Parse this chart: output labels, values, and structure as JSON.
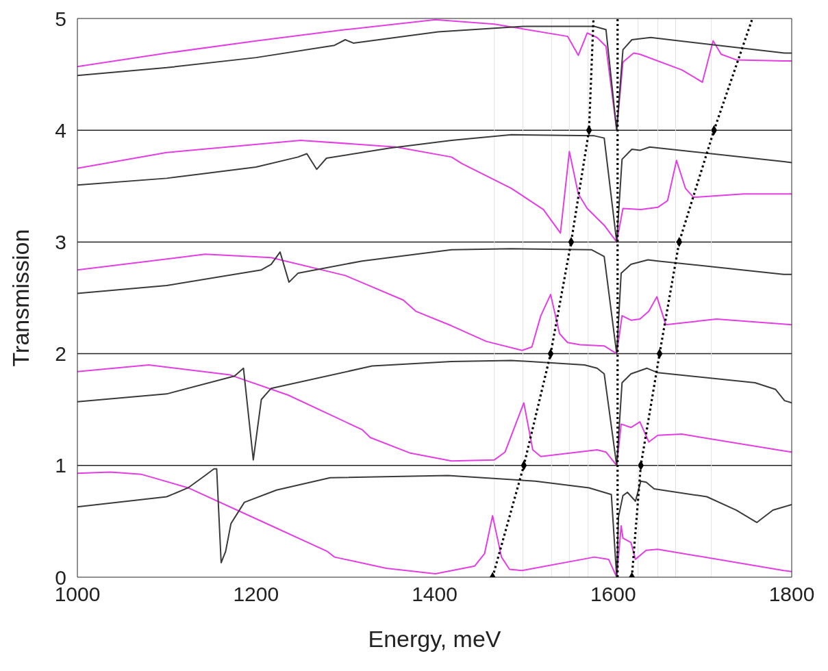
{
  "chart_data": {
    "type": "line",
    "xlabel": "Energy, meV",
    "ylabel": "Transmission",
    "xlim": [
      1000,
      1800
    ],
    "xticks": [
      1000,
      1200,
      1400,
      1600,
      1800
    ],
    "ylim": [
      0,
      5
    ],
    "yticks": [
      0,
      1,
      2,
      3,
      4,
      5
    ],
    "series": [
      {
        "color": "#e33de3",
        "marker": "none",
        "line_style": "solid",
        "x": [
          1000,
          1100,
          1200,
          1300,
          1401,
          1467,
          1549,
          1561,
          1571,
          1582,
          1592,
          1604,
          1611,
          1623,
          1630,
          1677,
          1700,
          1712,
          1721,
          1738,
          1791,
          1800
        ],
        "values": [
          4.57,
          4.69,
          4.8,
          4.9,
          4.99,
          4.95,
          4.84,
          4.67,
          4.87,
          4.83,
          4.75,
          4.0,
          4.61,
          4.69,
          4.68,
          4.54,
          4.43,
          4.8,
          4.68,
          4.63,
          4.62,
          4.62
        ]
      },
      {
        "color": "#3a3a3a",
        "marker": "none",
        "line_style": "solid",
        "x": [
          1000,
          1100,
          1200,
          1288,
          1300,
          1309,
          1404,
          1500,
          1579,
          1592,
          1604,
          1611,
          1621,
          1642,
          1792,
          1800
        ],
        "values": [
          4.49,
          4.56,
          4.65,
          4.76,
          4.81,
          4.78,
          4.88,
          4.93,
          4.93,
          4.9,
          4.0,
          4.72,
          4.81,
          4.83,
          4.69,
          4.69
        ]
      },
      {
        "color": "#e33de3",
        "marker": "none",
        "line_style": "solid",
        "x": [
          1000,
          1100,
          1250,
          1357,
          1419,
          1431,
          1486,
          1522,
          1541,
          1551,
          1561,
          1571,
          1590,
          1604,
          1611,
          1631,
          1650,
          1661,
          1671,
          1681,
          1690,
          1746,
          1800
        ],
        "values": [
          3.66,
          3.8,
          3.91,
          3.85,
          3.76,
          3.7,
          3.48,
          3.29,
          3.08,
          3.81,
          3.43,
          3.3,
          3.15,
          3.0,
          3.3,
          3.29,
          3.31,
          3.37,
          3.73,
          3.48,
          3.4,
          3.43,
          3.43
        ]
      },
      {
        "color": "#3a3a3a",
        "marker": "none",
        "line_style": "solid",
        "x": [
          1000,
          1100,
          1200,
          1247,
          1257,
          1268,
          1279,
          1350,
          1419,
          1486,
          1579,
          1590,
          1604,
          1610,
          1621,
          1630,
          1641,
          1791,
          1800
        ],
        "values": [
          3.51,
          3.57,
          3.67,
          3.76,
          3.79,
          3.65,
          3.75,
          3.84,
          3.91,
          3.96,
          3.95,
          3.93,
          3.0,
          3.74,
          3.83,
          3.82,
          3.85,
          3.72,
          3.71
        ]
      },
      {
        "color": "#e33de3",
        "marker": "none",
        "line_style": "solid",
        "x": [
          1000,
          1143,
          1217,
          1300,
          1365,
          1379,
          1419,
          1458,
          1498,
          1509,
          1519,
          1530,
          1540,
          1549,
          1563,
          1590,
          1604,
          1610,
          1620,
          1630,
          1640,
          1649,
          1659,
          1716,
          1800
        ],
        "values": [
          2.75,
          2.89,
          2.86,
          2.7,
          2.48,
          2.38,
          2.25,
          2.11,
          2.03,
          2.06,
          2.34,
          2.53,
          2.18,
          2.1,
          2.08,
          2.07,
          2.0,
          2.34,
          2.3,
          2.31,
          2.38,
          2.51,
          2.26,
          2.31,
          2.26
        ]
      },
      {
        "color": "#3a3a3a",
        "marker": "none",
        "line_style": "solid",
        "x": [
          1000,
          1100,
          1206,
          1217,
          1227,
          1237,
          1247,
          1319,
          1419,
          1486,
          1576,
          1590,
          1604,
          1609,
          1620,
          1639,
          1650,
          1791,
          1800
        ],
        "values": [
          2.54,
          2.61,
          2.75,
          2.8,
          2.91,
          2.64,
          2.72,
          2.83,
          2.93,
          2.94,
          2.93,
          2.87,
          2.0,
          2.72,
          2.8,
          2.84,
          2.83,
          2.71,
          2.71
        ]
      },
      {
        "color": "#e33de3",
        "marker": "none",
        "line_style": "solid",
        "x": [
          1000,
          1080,
          1171,
          1236,
          1319,
          1328,
          1373,
          1419,
          1467,
          1479,
          1500,
          1510,
          1519,
          1582,
          1592,
          1604,
          1609,
          1620,
          1630,
          1640,
          1650,
          1677,
          1791,
          1800
        ],
        "values": [
          1.84,
          1.9,
          1.81,
          1.63,
          1.32,
          1.25,
          1.11,
          1.04,
          1.05,
          1.12,
          1.56,
          1.14,
          1.08,
          1.14,
          1.12,
          1.0,
          1.37,
          1.34,
          1.39,
          1.21,
          1.27,
          1.28,
          1.13,
          1.12
        ]
      },
      {
        "color": "#3a3a3a",
        "marker": "none",
        "line_style": "solid",
        "x": [
          1000,
          1100,
          1176,
          1186,
          1197,
          1206,
          1217,
          1330,
          1419,
          1486,
          1568,
          1582,
          1590,
          1604,
          1610,
          1620,
          1638,
          1650,
          1759,
          1782,
          1792,
          1800
        ],
        "values": [
          1.57,
          1.64,
          1.8,
          1.87,
          1.05,
          1.59,
          1.69,
          1.89,
          1.93,
          1.94,
          1.9,
          1.87,
          1.82,
          1.0,
          1.74,
          1.82,
          1.87,
          1.83,
          1.74,
          1.68,
          1.58,
          1.56
        ]
      },
      {
        "color": "#e33de3",
        "marker": "none",
        "line_style": "solid",
        "x": [
          1000,
          1037,
          1072,
          1124,
          1209,
          1280,
          1288,
          1346,
          1401,
          1445,
          1456,
          1465,
          1475,
          1484,
          1498,
          1579,
          1595,
          1604,
          1609,
          1611,
          1620,
          1625,
          1637,
          1650,
          1791,
          1800
        ],
        "values": [
          0.93,
          0.94,
          0.92,
          0.8,
          0.49,
          0.23,
          0.18,
          0.08,
          0.03,
          0.1,
          0.21,
          0.55,
          0.18,
          0.07,
          0.06,
          0.18,
          0.16,
          0.0,
          0.46,
          0.35,
          0.31,
          0.16,
          0.24,
          0.25,
          0.06,
          0.05
        ]
      },
      {
        "color": "#3a3a3a",
        "marker": "none",
        "line_style": "solid",
        "x": [
          1000,
          1100,
          1124,
          1143,
          1153,
          1156,
          1161,
          1166,
          1172,
          1187,
          1223,
          1283,
          1415,
          1513,
          1573,
          1598,
          1604,
          1606,
          1611,
          1616,
          1625,
          1631,
          1637,
          1646,
          1705,
          1738,
          1761,
          1779,
          1800
        ],
        "values": [
          0.63,
          0.72,
          0.8,
          0.91,
          0.97,
          0.97,
          0.13,
          0.23,
          0.48,
          0.67,
          0.78,
          0.89,
          0.91,
          0.86,
          0.8,
          0.74,
          0.0,
          0.54,
          0.73,
          0.76,
          0.68,
          0.86,
          0.85,
          0.79,
          0.72,
          0.6,
          0.49,
          0.6,
          0.65
        ]
      },
      {
        "type": "line",
        "color": "#000000",
        "marker": "none",
        "line_style": "dotted",
        "x": [
          1465,
          1500,
          1530,
          1553,
          1573,
          1578
        ],
        "values": [
          0,
          1,
          2,
          3,
          4,
          5
        ]
      },
      {
        "type": "line",
        "color": "#000000",
        "marker": "none",
        "line_style": "dotted",
        "x": [
          1605,
          1605
        ],
        "values": [
          0,
          5
        ]
      },
      {
        "type": "line",
        "color": "#000000",
        "marker": "none",
        "line_style": "dotted",
        "x": [
          1621,
          1631,
          1652,
          1674,
          1713,
          1756
        ],
        "values": [
          0,
          1,
          2,
          3,
          4,
          5
        ]
      },
      {
        "type": "scatter",
        "color": "#000000",
        "marker": "diamond",
        "x": [
          1465,
          1500,
          1530,
          1553,
          1573,
          1621,
          1631,
          1652,
          1674,
          1713
        ],
        "values": [
          0,
          1,
          2,
          3,
          4,
          0,
          1,
          2,
          3,
          4
        ]
      }
    ],
    "ref_lines": [
      {
        "axis": "y",
        "value": 1,
        "color": "#222222"
      },
      {
        "axis": "y",
        "value": 2,
        "color": "#222222"
      },
      {
        "axis": "y",
        "value": 3,
        "color": "#222222"
      },
      {
        "axis": "y",
        "value": 4,
        "color": "#222222"
      },
      {
        "axis": "x",
        "value": 1467,
        "color": "#e2e2e2"
      },
      {
        "axis": "x",
        "value": 1499,
        "color": "#e2e2e2"
      },
      {
        "axis": "x",
        "value": 1531,
        "color": "#e2e2e2"
      },
      {
        "axis": "x",
        "value": 1551,
        "color": "#e2e2e2"
      },
      {
        "axis": "x",
        "value": 1572,
        "color": "#e2e2e2"
      },
      {
        "axis": "x",
        "value": 1628,
        "color": "#e2e2e2"
      },
      {
        "axis": "x",
        "value": 1650,
        "color": "#e2e2e2"
      },
      {
        "axis": "x",
        "value": 1670,
        "color": "#e2e2e2"
      },
      {
        "axis": "x",
        "value": 1710,
        "color": "#e2e2e2"
      }
    ]
  }
}
